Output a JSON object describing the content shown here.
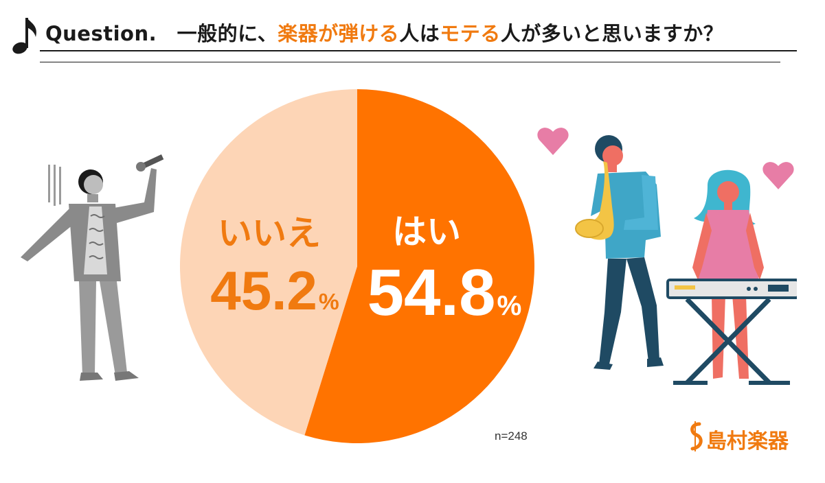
{
  "header": {
    "title_prefix": "Question.　一般的に、",
    "title_accent1": "楽器が弾ける",
    "title_mid": "人は",
    "title_accent2": "モテる",
    "title_suffix": "人が多いと思いますか？"
  },
  "chart_data": {
    "type": "pie",
    "slices": [
      {
        "label": "はい",
        "value": 54.8,
        "color": "#ff7300"
      },
      {
        "label": "いいえ",
        "value": 45.2,
        "color": "#fdd5b6"
      }
    ],
    "unit": "%",
    "sample": "n=248"
  },
  "labels": {
    "yes": "はい",
    "yes_value": "54.8",
    "no": "いいえ",
    "no_value": "45.2",
    "percent": "%"
  },
  "brand": {
    "name": "島村楽器",
    "color": "#f07a10"
  },
  "colors": {
    "accent": "#f07a10",
    "pie_yes": "#ff7300",
    "pie_no": "#fdd5b6"
  },
  "icons": [
    "music-note-icon",
    "gray-singer-illustration",
    "saxophone-player-illustration",
    "keyboard-player-illustration",
    "heart-icon",
    "shimamura-logo-icon"
  ]
}
